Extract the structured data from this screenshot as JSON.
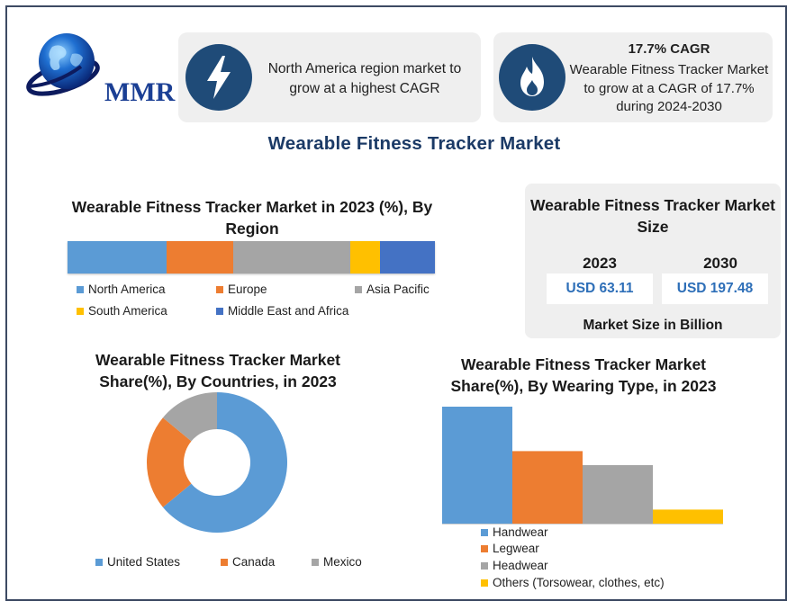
{
  "logo": {
    "text": "MMR"
  },
  "card_region": {
    "text": "North America region market to grow at a highest CAGR",
    "icon": "lightning-icon"
  },
  "card_cagr": {
    "title": "17.7% CAGR",
    "text": "Wearable Fitness Tracker Market to grow at a CAGR of 17.7% during 2024-2030",
    "icon": "flame-icon"
  },
  "main_title": "Wearable Fitness Tracker Market",
  "colors": {
    "blue": "#5b9bd5",
    "orange": "#ed7d31",
    "gray": "#a5a5a5",
    "yellow": "#ffc000",
    "dark_blue": "#4472c4",
    "icon_bg": "#1f4b78",
    "title_blue": "#1b3a66"
  },
  "market_size": {
    "title": "Wearable Fitness Tracker Market Size",
    "years": [
      {
        "year": "2023",
        "value": "USD 63.11"
      },
      {
        "year": "2030",
        "value": "USD 197.48"
      }
    ],
    "unit_label": "Market Size in Billion"
  },
  "chart_data": [
    {
      "type": "bar",
      "orientation": "horizontal-stacked",
      "title": "Wearable Fitness Tracker Market in 2023 (%), By Region",
      "series": [
        {
          "name": "North America",
          "values": [
            27
          ]
        },
        {
          "name": "Europe",
          "values": [
            18
          ]
        },
        {
          "name": "Asia Pacific",
          "values": [
            32
          ]
        },
        {
          "name": "South America",
          "values": [
            8
          ]
        },
        {
          "name": "Middle East and Africa",
          "values": [
            15
          ]
        }
      ],
      "xlim": [
        0,
        100
      ],
      "legend": [
        "North America",
        "Europe",
        "Asia Pacific",
        "South America",
        "Middle East and Africa"
      ],
      "legend_position": "bottom"
    },
    {
      "type": "pie",
      "subtype": "donut",
      "title": "Wearable Fitness Tracker Market Share(%), By Countries, in 2023",
      "categories": [
        "United States",
        "Canada",
        "Mexico"
      ],
      "values": [
        64,
        22,
        14
      ],
      "legend_position": "bottom"
    },
    {
      "type": "bar",
      "title": "Wearable Fitness Tracker Market Share(%), By Wearing Type, in 2023",
      "categories": [
        "Handwear",
        "Legwear",
        "Headwear",
        "Others (Torsowear, clothes, etc)"
      ],
      "values": [
        50,
        31,
        25,
        6
      ],
      "ylim": [
        0,
        50
      ],
      "legend_position": "bottom"
    }
  ]
}
